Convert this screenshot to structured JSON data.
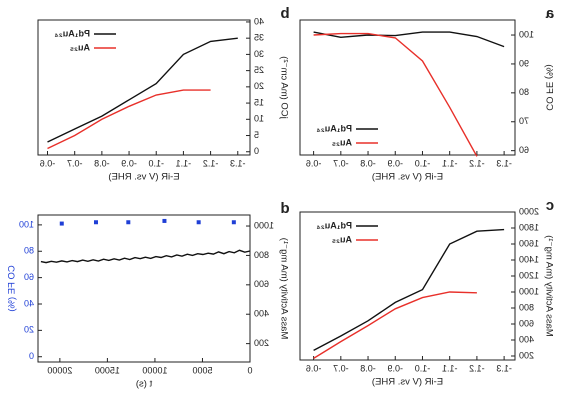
{
  "chart_data": [
    {
      "type": "line",
      "label": "a",
      "xlabel": "E-iR (V vs. RHE)",
      "ylabel": "CO FE (%)",
      "x": [
        -0.6,
        -0.7,
        -0.8,
        -0.9,
        -1.0,
        -1.1,
        -1.2,
        -1.3
      ],
      "series": [
        {
          "name": "Pd₁Au₂₄",
          "color": "#111111",
          "values": [
            101,
            99.2,
            100,
            99.8,
            101,
            101,
            99.5,
            96
          ]
        },
        {
          "name": "Au₂₅",
          "color": "#e8302a",
          "values": [
            100,
            100.5,
            100.5,
            99,
            91,
            75,
            58,
            null
          ]
        }
      ],
      "xlim": [
        -1.34,
        -0.55
      ],
      "xticks": [
        -1.3,
        -1.2,
        -1.1,
        {
          "value": -1,
          "label": "-1.0"
        },
        -0.9,
        -0.8,
        -0.7,
        -0.6
      ],
      "ylim": [
        58.5,
        105.2
      ],
      "yticks": [
        60,
        70,
        80,
        90,
        100
      ],
      "legend": "lower right"
    },
    {
      "type": "line",
      "label": "b",
      "xlabel": "E-iR (V vs. RHE)",
      "ylabel": "jCO (mA cm⁻²)",
      "x": [
        -0.6,
        -0.7,
        -0.8,
        -0.9,
        -1.0,
        -1.1,
        -1.2,
        -1.3
      ],
      "series": [
        {
          "name": "Pd₁Au₂₄",
          "color": "#111111",
          "values": [
            3,
            7,
            11,
            16,
            21,
            30,
            34,
            35
          ]
        },
        {
          "name": "Au₂₅",
          "color": "#e8302a",
          "values": [
            1,
            5,
            10,
            14,
            17.5,
            19,
            19,
            null
          ]
        }
      ],
      "xlim": [
        -1.345,
        -0.565
      ],
      "xticks": [
        -1.3,
        -1.2,
        -1.1,
        {
          "value": -1,
          "label": "-1.0"
        },
        -0.9,
        -0.8,
        -0.7,
        -0.6
      ],
      "ylim": [
        -1,
        40.6
      ],
      "yticks": [
        0,
        5,
        10,
        15,
        20,
        25,
        30,
        35,
        40
      ],
      "legend": "upper right"
    },
    {
      "type": "line",
      "label": "c",
      "xlabel": "E-iR (V vs. RHE)",
      "ylabel": "Mass Activity (mA mg⁻¹)",
      "x": [
        -0.6,
        -0.7,
        -0.8,
        -0.9,
        -1.0,
        -1.1,
        -1.2,
        -1.3
      ],
      "series": [
        {
          "name": "Pd₁Au₂₄",
          "color": "#111111",
          "values": [
            270,
            450,
            640,
            870,
            1030,
            1600,
            1760,
            1780
          ]
        },
        {
          "name": "Au₂₅",
          "color": "#e8302a",
          "values": [
            170,
            380,
            580,
            790,
            930,
            1000,
            990,
            null
          ]
        }
      ],
      "xlim": [
        -1.34,
        -0.55
      ],
      "xticks": [
        -1.3,
        -1.2,
        -1.1,
        {
          "value": -1,
          "label": "-1.0"
        },
        -0.9,
        -0.8,
        -0.7,
        -0.6
      ],
      "ylim": [
        150,
        2000
      ],
      "yticks": [
        200,
        400,
        600,
        800,
        1000,
        1200,
        1400,
        1600,
        1800,
        2000
      ],
      "legend": "upper right"
    },
    {
      "type": "line",
      "label": "d",
      "xlabel": "t (s)",
      "ylabel": "Mass Activity (mA mg⁻¹)",
      "y2label": "CO FE (%)",
      "series": [
        {
          "color": "#111111",
          "x": [
            0,
            550,
            1100,
            1650,
            2200,
            2750,
            3300,
            3850,
            4400,
            4950,
            5500,
            6050,
            6600,
            7150,
            7700,
            8250,
            8800,
            9350,
            9900,
            10450,
            11000,
            11550,
            12100,
            12650,
            13200,
            13750,
            14300,
            14850,
            15400,
            15950,
            16500,
            17050,
            17600,
            18150,
            18700,
            19250,
            19800,
            20350,
            20900,
            21450,
            22000
          ],
          "values": [
            830,
            822,
            835,
            818,
            826,
            812,
            824,
            809,
            815,
            806,
            812,
            800,
            808,
            795,
            803,
            790,
            798,
            786,
            792,
            780,
            788,
            778,
            785,
            772,
            781,
            769,
            777,
            766,
            774,
            762,
            770,
            760,
            768,
            758,
            765,
            756,
            763,
            754,
            760,
            751,
            758
          ]
        },
        {
          "color": "#1f3fd6",
          "axis": "y2",
          "mode": "markers",
          "x": [
            1700,
            5400,
            9000,
            12800,
            16200,
            19800
          ],
          "values": [
            102,
            102,
            103,
            102,
            102,
            101
          ]
        }
      ],
      "xlim": [
        0,
        22300
      ],
      "xticks": [
        0,
        5000,
        10000,
        15000,
        20000
      ],
      "ylim": [
        75,
        1075
      ],
      "yticks": [
        200,
        400,
        600,
        800,
        1000
      ],
      "y2lim": [
        -4,
        107.5
      ],
      "y2ticks": [
        0,
        20,
        40,
        60,
        80,
        100
      ]
    }
  ]
}
